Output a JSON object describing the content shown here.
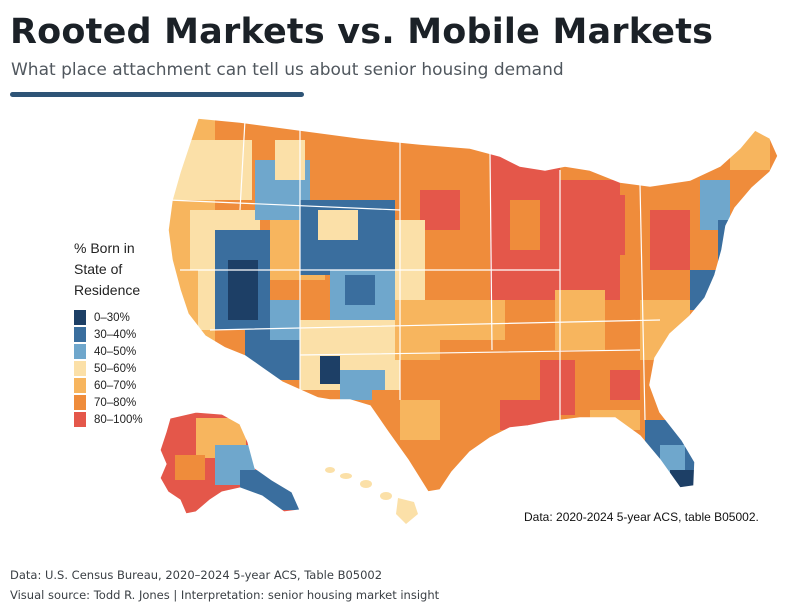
{
  "title": "Rooted Markets vs. Mobile Markets",
  "subtitle": "What place attachment can tell us about senior housing demand",
  "legend": {
    "title_lines": [
      "% Born in",
      "State of",
      "Residence"
    ],
    "items": [
      {
        "label": "0–30%",
        "color": "#1d3f66"
      },
      {
        "label": "30–40%",
        "color": "#3a6e9e"
      },
      {
        "label": "40–50%",
        "color": "#6fa7cc"
      },
      {
        "label": "50–60%",
        "color": "#fbe0a8"
      },
      {
        "label": "60–70%",
        "color": "#f7b55e"
      },
      {
        "label": "70–80%",
        "color": "#ef8c3b"
      },
      {
        "label": "80–100%",
        "color": "#e4574a"
      }
    ]
  },
  "map_note": "Data: 2020-2024 5-year ACS, table B05002.",
  "footer": {
    "line1": "Data: U.S. Census Bureau, 2020–2024 5-year ACS, Table B05002",
    "line2": "Visual source: Todd R. Jones  |  Interpretation: senior housing market insight"
  }
}
